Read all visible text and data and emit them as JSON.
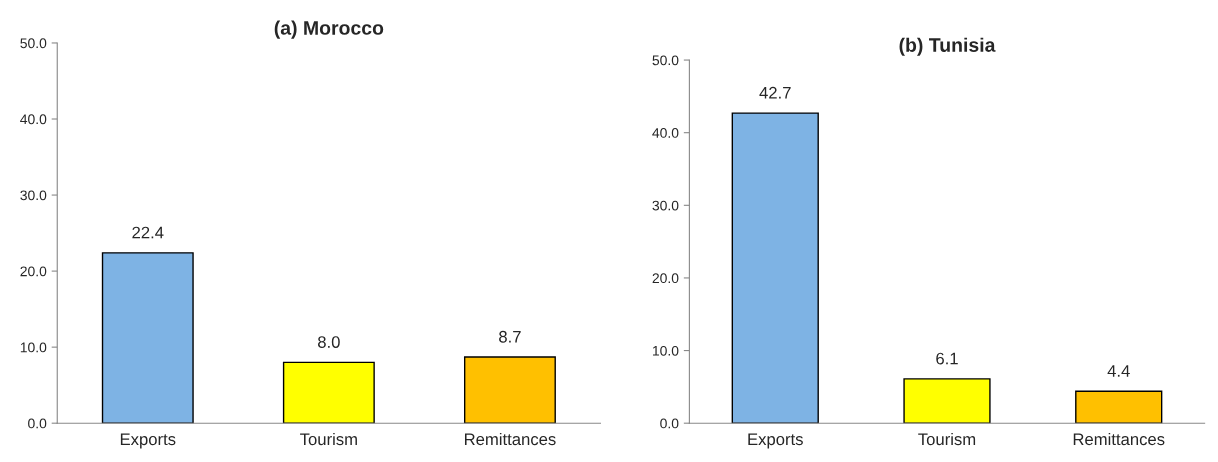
{
  "chart_data": [
    {
      "type": "bar",
      "title": "(a) Morocco",
      "categories": [
        "Exports",
        "Tourism",
        "Remittances"
      ],
      "values": [
        22.4,
        8.0,
        8.7
      ],
      "colors": [
        "#7eb3e4",
        "#ffff00",
        "#ffc000"
      ],
      "value_labels": [
        "22.4",
        "8.0",
        "8.7"
      ],
      "ylim": [
        0,
        50
      ],
      "yticks": [
        {
          "value": 0,
          "label": "0.0"
        },
        {
          "value": 10,
          "label": "10.0"
        },
        {
          "value": 20,
          "label": "20.0"
        },
        {
          "value": 30,
          "label": "30.0"
        },
        {
          "value": 40,
          "label": "40.0"
        },
        {
          "value": 50,
          "label": "50.0"
        }
      ],
      "grid": false,
      "legend": false
    },
    {
      "type": "bar",
      "title": "(b) Tunisia",
      "categories": [
        "Exports",
        "Tourism",
        "Remittances"
      ],
      "values": [
        42.7,
        6.1,
        4.4
      ],
      "colors": [
        "#7eb3e4",
        "#ffff00",
        "#ffc000"
      ],
      "value_labels": [
        "42.7",
        "6.1",
        "4.4"
      ],
      "ylim": [
        0,
        50
      ],
      "yticks": [
        {
          "value": 0,
          "label": "0.0"
        },
        {
          "value": 10,
          "label": "10.0"
        },
        {
          "value": 20,
          "label": "20.0"
        },
        {
          "value": 30,
          "label": "30.0"
        },
        {
          "value": 40,
          "label": "40.0"
        },
        {
          "value": 50,
          "label": "50.0"
        }
      ],
      "grid": false,
      "legend": false
    }
  ]
}
